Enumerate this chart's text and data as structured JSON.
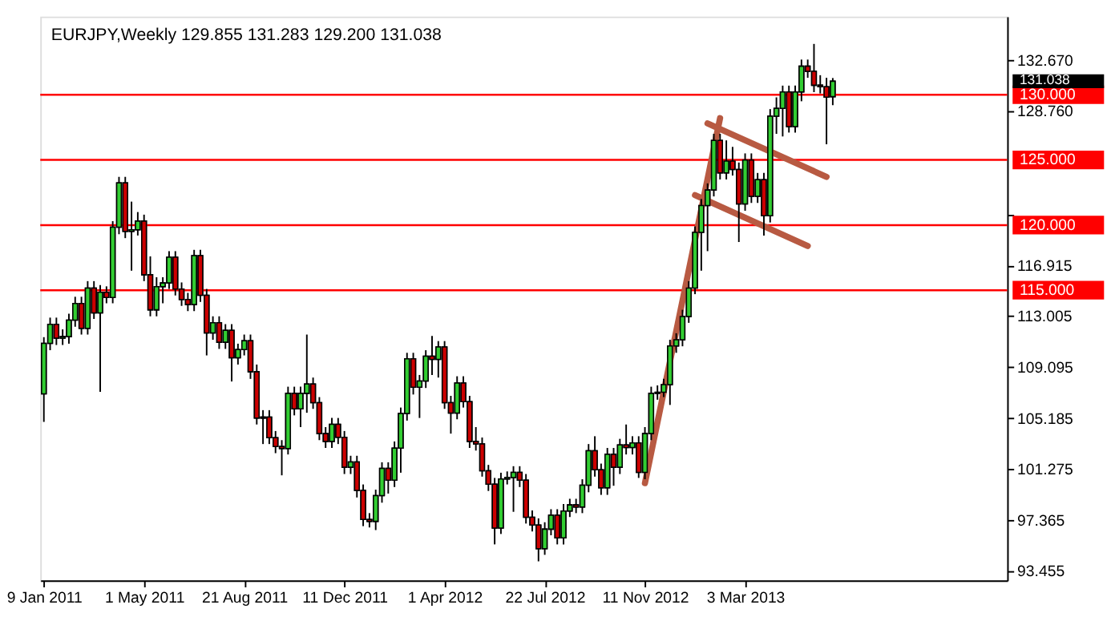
{
  "chart_data": {
    "type": "candlestick",
    "title": "EURJPY,Weekly  129.855 131.283 129.200 131.038",
    "x": [
      "2011-01-09",
      "2011-01-16",
      "2011-01-23",
      "2011-01-30",
      "2011-02-06",
      "2011-02-13",
      "2011-02-20",
      "2011-02-27",
      "2011-03-06",
      "2011-03-13",
      "2011-03-20",
      "2011-03-27",
      "2011-04-03",
      "2011-04-10",
      "2011-04-17",
      "2011-04-24",
      "2011-05-01",
      "2011-05-08",
      "2011-05-15",
      "2011-05-22",
      "2011-05-29",
      "2011-06-05",
      "2011-06-12",
      "2011-06-19",
      "2011-06-26",
      "2011-07-03",
      "2011-07-10",
      "2011-07-17",
      "2011-07-24",
      "2011-07-31",
      "2011-08-07",
      "2011-08-14",
      "2011-08-21",
      "2011-08-28",
      "2011-09-04",
      "2011-09-11",
      "2011-09-18",
      "2011-09-25",
      "2011-10-02",
      "2011-10-09",
      "2011-10-16",
      "2011-10-23",
      "2011-10-30",
      "2011-11-06",
      "2011-11-13",
      "2011-11-20",
      "2011-11-27",
      "2011-12-04",
      "2011-12-11",
      "2011-12-18",
      "2011-12-25",
      "2012-01-01",
      "2012-01-08",
      "2012-01-15",
      "2012-01-22",
      "2012-01-29",
      "2012-02-05",
      "2012-02-12",
      "2012-02-19",
      "2012-02-26",
      "2012-03-04",
      "2012-03-11",
      "2012-03-18",
      "2012-03-25",
      "2012-04-01",
      "2012-04-08",
      "2012-04-15",
      "2012-04-22",
      "2012-04-29",
      "2012-05-06",
      "2012-05-13",
      "2012-05-20",
      "2012-05-27",
      "2012-06-03",
      "2012-06-10",
      "2012-06-17",
      "2012-06-24",
      "2012-07-01",
      "2012-07-08",
      "2012-07-15",
      "2012-07-22",
      "2012-07-29",
      "2012-08-05",
      "2012-08-12",
      "2012-08-19",
      "2012-08-26",
      "2012-09-02",
      "2012-09-09",
      "2012-09-16",
      "2012-09-23",
      "2012-09-30",
      "2012-10-07",
      "2012-10-14",
      "2012-10-21",
      "2012-10-28",
      "2012-11-04",
      "2012-11-11",
      "2012-11-18",
      "2012-11-25",
      "2012-12-02",
      "2012-12-09",
      "2012-12-16",
      "2012-12-23",
      "2012-12-30",
      "2013-01-06",
      "2013-01-13",
      "2013-01-20",
      "2013-01-27",
      "2013-02-03",
      "2013-02-10",
      "2013-02-17",
      "2013-02-24",
      "2013-03-03",
      "2013-03-10",
      "2013-03-17",
      "2013-03-24",
      "2013-03-31",
      "2013-04-07",
      "2013-04-14",
      "2013-04-21",
      "2013-04-28",
      "2013-05-05",
      "2013-05-12",
      "2013-05-19",
      "2013-05-26",
      "2013-06-02",
      "2013-06-09"
    ],
    "ohlc": [
      [
        107.05,
        111.4,
        104.9,
        110.93
      ],
      [
        110.93,
        112.9,
        110.4,
        112.39
      ],
      [
        112.39,
        112.9,
        110.8,
        111.32
      ],
      [
        111.32,
        112.0,
        110.8,
        111.44
      ],
      [
        111.44,
        113.2,
        110.9,
        112.71
      ],
      [
        112.71,
        114.5,
        112.2,
        113.98
      ],
      [
        113.98,
        114.5,
        111.6,
        112.08
      ],
      [
        112.08,
        115.7,
        111.6,
        115.17
      ],
      [
        115.17,
        115.7,
        112.8,
        113.26
      ],
      [
        113.26,
        115.4,
        107.2,
        114.85
      ],
      [
        114.85,
        115.3,
        114.0,
        114.45
      ],
      [
        114.45,
        120.3,
        114.0,
        119.84
      ],
      [
        119.84,
        123.7,
        119.3,
        123.24
      ],
      [
        123.24,
        123.7,
        119.0,
        119.52
      ],
      [
        119.52,
        121.8,
        116.5,
        119.64
      ],
      [
        119.64,
        121.0,
        119.2,
        120.31
      ],
      [
        120.31,
        120.8,
        115.7,
        116.19
      ],
      [
        116.19,
        117.6,
        113.0,
        113.5
      ],
      [
        113.5,
        116.0,
        113.0,
        115.28
      ],
      [
        115.28,
        116.0,
        114.0,
        115.56
      ],
      [
        115.56,
        118.0,
        115.1,
        117.54
      ],
      [
        117.54,
        118.0,
        114.6,
        115.09
      ],
      [
        115.09,
        115.6,
        113.8,
        114.29
      ],
      [
        114.29,
        114.8,
        113.4,
        113.9
      ],
      [
        113.9,
        118.1,
        113.4,
        117.66
      ],
      [
        117.66,
        118.1,
        114.1,
        114.61
      ],
      [
        114.61,
        115.1,
        110.0,
        111.72
      ],
      [
        111.72,
        113.0,
        111.2,
        112.51
      ],
      [
        112.51,
        113.0,
        110.5,
        111.01
      ],
      [
        111.01,
        112.4,
        110.5,
        111.92
      ],
      [
        111.92,
        112.4,
        108.0,
        109.82
      ],
      [
        109.82,
        110.9,
        109.3,
        110.45
      ],
      [
        110.45,
        111.6,
        110.0,
        111.13
      ],
      [
        111.13,
        111.6,
        108.2,
        108.75
      ],
      [
        108.75,
        109.3,
        104.7,
        105.19
      ],
      [
        105.19,
        105.8,
        103.2,
        105.27
      ],
      [
        105.27,
        105.8,
        103.2,
        103.68
      ],
      [
        103.68,
        104.2,
        102.5,
        103.01
      ],
      [
        103.01,
        103.5,
        100.8,
        102.85
      ],
      [
        102.85,
        107.6,
        102.4,
        107.09
      ],
      [
        107.09,
        107.6,
        105.4,
        105.9
      ],
      [
        105.9,
        107.6,
        104.5,
        107.09
      ],
      [
        107.09,
        111.6,
        105.6,
        107.8
      ],
      [
        107.8,
        108.3,
        105.9,
        106.37
      ],
      [
        106.37,
        106.8,
        103.5,
        104.0
      ],
      [
        104.0,
        104.5,
        102.9,
        103.4
      ],
      [
        103.4,
        105.2,
        102.9,
        104.71
      ],
      [
        104.71,
        105.2,
        103.2,
        103.72
      ],
      [
        103.72,
        104.2,
        100.9,
        101.42
      ],
      [
        101.42,
        102.3,
        100.9,
        101.82
      ],
      [
        101.82,
        102.3,
        99.1,
        99.64
      ],
      [
        99.64,
        100.1,
        96.9,
        97.42
      ],
      [
        97.42,
        97.9,
        96.8,
        97.27
      ],
      [
        97.27,
        99.7,
        96.6,
        99.25
      ],
      [
        99.25,
        101.8,
        98.7,
        101.34
      ],
      [
        101.34,
        101.8,
        99.4,
        100.43
      ],
      [
        100.43,
        103.4,
        99.9,
        102.89
      ],
      [
        102.89,
        106.0,
        101.0,
        105.54
      ],
      [
        105.54,
        110.2,
        105.0,
        109.74
      ],
      [
        109.74,
        110.2,
        107.0,
        107.56
      ],
      [
        107.56,
        108.5,
        105.2,
        108.04
      ],
      [
        108.04,
        110.4,
        107.5,
        109.94
      ],
      [
        109.94,
        111.5,
        108.5,
        109.7
      ],
      [
        109.7,
        111.1,
        108.3,
        110.65
      ],
      [
        110.65,
        111.1,
        105.9,
        106.37
      ],
      [
        106.37,
        106.9,
        104.0,
        105.58
      ],
      [
        105.58,
        108.4,
        105.1,
        107.88
      ],
      [
        107.88,
        108.4,
        106.0,
        106.45
      ],
      [
        106.45,
        106.9,
        102.9,
        103.4
      ],
      [
        103.4,
        104.5,
        102.7,
        103.21
      ],
      [
        103.21,
        103.7,
        100.7,
        101.15
      ],
      [
        101.15,
        101.6,
        99.6,
        100.12
      ],
      [
        100.12,
        100.6,
        95.5,
        96.75
      ],
      [
        96.75,
        101.0,
        96.3,
        100.52
      ],
      [
        100.52,
        101.1,
        100.1,
        100.63
      ],
      [
        100.63,
        101.5,
        98.0,
        101.03
      ],
      [
        101.03,
        101.5,
        99.9,
        100.43
      ],
      [
        100.43,
        100.9,
        97.1,
        97.58
      ],
      [
        97.58,
        98.1,
        96.5,
        96.99
      ],
      [
        96.99,
        97.5,
        94.2,
        95.17
      ],
      [
        95.17,
        97.2,
        94.7,
        96.67
      ],
      [
        96.67,
        98.2,
        96.2,
        97.74
      ],
      [
        97.74,
        98.2,
        95.5,
        96.0
      ],
      [
        96.0,
        98.6,
        95.5,
        98.06
      ],
      [
        98.06,
        99.0,
        97.6,
        98.53
      ],
      [
        98.53,
        99.0,
        97.9,
        98.37
      ],
      [
        98.37,
        100.5,
        97.9,
        100.04
      ],
      [
        100.04,
        103.2,
        99.5,
        102.69
      ],
      [
        102.69,
        103.8,
        100.7,
        101.23
      ],
      [
        101.23,
        101.7,
        99.3,
        99.84
      ],
      [
        99.84,
        102.9,
        99.3,
        102.41
      ],
      [
        102.41,
        102.9,
        100.0,
        101.42
      ],
      [
        101.42,
        103.6,
        100.9,
        103.13
      ],
      [
        103.13,
        104.7,
        102.4,
        102.93
      ],
      [
        102.93,
        103.8,
        102.4,
        103.29
      ],
      [
        103.29,
        103.8,
        100.6,
        101.03
      ],
      [
        101.03,
        104.5,
        100.5,
        104.0
      ],
      [
        104.0,
        107.6,
        103.5,
        107.09
      ],
      [
        107.09,
        107.7,
        106.6,
        107.17
      ],
      [
        107.17,
        108.2,
        106.8,
        107.76
      ],
      [
        107.76,
        111.2,
        106.2,
        110.73
      ],
      [
        110.73,
        111.7,
        110.2,
        111.2
      ],
      [
        111.2,
        113.5,
        110.7,
        112.99
      ],
      [
        112.99,
        115.7,
        112.5,
        115.17
      ],
      [
        115.17,
        119.9,
        114.7,
        119.44
      ],
      [
        119.44,
        122.0,
        116.5,
        121.5
      ],
      [
        121.5,
        123.2,
        118.0,
        122.69
      ],
      [
        122.69,
        127.0,
        122.2,
        126.49
      ],
      [
        126.49,
        127.0,
        123.5,
        124.0
      ],
      [
        124.0,
        126.5,
        123.5,
        124.91
      ],
      [
        124.91,
        126.0,
        123.8,
        124.27
      ],
      [
        124.27,
        124.8,
        118.7,
        121.62
      ],
      [
        121.62,
        125.5,
        121.1,
        124.99
      ],
      [
        124.99,
        125.5,
        121.7,
        122.21
      ],
      [
        122.21,
        124.0,
        121.7,
        123.48
      ],
      [
        123.48,
        124.0,
        119.2,
        120.71
      ],
      [
        120.71,
        128.9,
        120.2,
        128.35
      ],
      [
        128.35,
        129.8,
        127.0,
        128.95
      ],
      [
        128.95,
        130.7,
        126.8,
        130.21
      ],
      [
        130.21,
        130.7,
        127.1,
        127.56
      ],
      [
        127.56,
        130.7,
        127.1,
        130.21
      ],
      [
        130.21,
        132.7,
        129.5,
        132.19
      ],
      [
        132.19,
        132.7,
        131.3,
        131.8
      ],
      [
        131.8,
        133.9,
        130.2,
        130.73
      ],
      [
        130.73,
        131.5,
        130.1,
        130.61
      ],
      [
        130.61,
        131.3,
        126.2,
        129.82
      ],
      [
        129.855,
        131.283,
        129.2,
        131.038
      ]
    ],
    "colors": [
      "#32cd32",
      "#32cd32",
      "#cc0000",
      "#32cd32",
      "#32cd32",
      "#32cd32",
      "#cc0000",
      "#32cd32",
      "#cc0000",
      "#32cd32",
      "#cc0000",
      "#32cd32",
      "#32cd32",
      "#cc0000",
      "#32cd32",
      "#32cd32",
      "#cc0000",
      "#cc0000",
      "#32cd32",
      "#32cd32",
      "#32cd32",
      "#cc0000",
      "#cc0000",
      "#cc0000",
      "#32cd32",
      "#cc0000",
      "#cc0000",
      "#32cd32",
      "#cc0000",
      "#32cd32",
      "#cc0000",
      "#32cd32",
      "#32cd32",
      "#cc0000",
      "#cc0000",
      "#32cd32",
      "#cc0000",
      "#cc0000",
      "#cc0000",
      "#32cd32",
      "#cc0000",
      "#32cd32",
      "#32cd32",
      "#cc0000",
      "#cc0000",
      "#cc0000",
      "#32cd32",
      "#cc0000",
      "#cc0000",
      "#32cd32",
      "#cc0000",
      "#cc0000",
      "#cc0000",
      "#32cd32",
      "#32cd32",
      "#cc0000",
      "#32cd32",
      "#32cd32",
      "#32cd32",
      "#cc0000",
      "#32cd32",
      "#32cd32",
      "#cc0000",
      "#32cd32",
      "#cc0000",
      "#cc0000",
      "#32cd32",
      "#cc0000",
      "#cc0000",
      "#cc0000",
      "#cc0000",
      "#cc0000",
      "#cc0000",
      "#32cd32",
      "#32cd32",
      "#32cd32",
      "#cc0000",
      "#cc0000",
      "#cc0000",
      "#cc0000",
      "#32cd32",
      "#32cd32",
      "#cc0000",
      "#32cd32",
      "#32cd32",
      "#cc0000",
      "#32cd32",
      "#32cd32",
      "#cc0000",
      "#cc0000",
      "#32cd32",
      "#cc0000",
      "#32cd32",
      "#cc0000",
      "#32cd32",
      "#cc0000",
      "#32cd32",
      "#32cd32",
      "#32cd32",
      "#32cd32",
      "#32cd32",
      "#32cd32",
      "#32cd32",
      "#32cd32",
      "#32cd32",
      "#32cd32",
      "#32cd32",
      "#32cd32",
      "#cc0000",
      "#32cd32",
      "#cc0000",
      "#cc0000",
      "#32cd32",
      "#cc0000",
      "#32cd32",
      "#cc0000",
      "#32cd32",
      "#32cd32",
      "#32cd32",
      "#cc0000",
      "#32cd32",
      "#32cd32",
      "#cc0000",
      "#cc0000",
      "#cc0000",
      "#cc0000",
      "#32cd32"
    ],
    "xlim": [
      "2011-01-05",
      "2013-12-21"
    ],
    "xticks": [
      {
        "value": "2011-01-09",
        "label": "9 Jan 2011"
      },
      {
        "value": "2011-05-01",
        "label": "1 May 2011"
      },
      {
        "value": "2011-08-21",
        "label": "21 Aug 2011"
      },
      {
        "value": "2011-12-11",
        "label": "11 Dec 2011"
      },
      {
        "value": "2012-04-01",
        "label": "1 Apr 2012"
      },
      {
        "value": "2012-07-22",
        "label": "22 Jul 2012"
      },
      {
        "value": "2012-11-11",
        "label": "11 Nov 2012"
      },
      {
        "value": "2013-03-03",
        "label": "3 Mar 2013"
      }
    ],
    "ylim": [
      92.74,
      136.0
    ],
    "yticks": [
      {
        "value": 93.455,
        "label": "93.455"
      },
      {
        "value": 97.365,
        "label": "97.365"
      },
      {
        "value": 101.275,
        "label": "101.275"
      },
      {
        "value": 105.185,
        "label": "105.185"
      },
      {
        "value": 109.095,
        "label": "109.095"
      },
      {
        "value": 113.005,
        "label": "113.005"
      },
      {
        "value": 116.915,
        "label": "116.915"
      },
      {
        "value": 120.825,
        "label": null
      },
      {
        "value": 128.76,
        "label": "128.760"
      },
      {
        "value": 132.67,
        "label": "132.670"
      }
    ],
    "ref_lines": [
      {
        "axis": "y",
        "value": 130,
        "label": "130.000",
        "color": "#ff0000"
      },
      {
        "axis": "y",
        "value": 125,
        "label": "125.000",
        "color": "#ff0000"
      },
      {
        "axis": "y",
        "value": 120,
        "label": "120.000",
        "color": "#ff0000"
      },
      {
        "axis": "y",
        "value": 115,
        "label": "115.000",
        "color": "#ff0000"
      }
    ],
    "annotations": [
      "131.038"
    ],
    "series": [
      {
        "type": "line",
        "color": "#b85a42",
        "x": [
          "2012-11-11",
          "2013-02-03"
        ],
        "values": [
          100.2,
          128.2
        ]
      },
      {
        "type": "line",
        "color": "#b85a42",
        "x": [
          "2013-01-20",
          "2013-06-02"
        ],
        "values": [
          127.8,
          123.7
        ]
      },
      {
        "type": "line",
        "color": "#b85a42",
        "x": [
          "2013-01-06",
          "2013-05-12"
        ],
        "values": [
          122.3,
          118.4
        ]
      }
    ]
  }
}
